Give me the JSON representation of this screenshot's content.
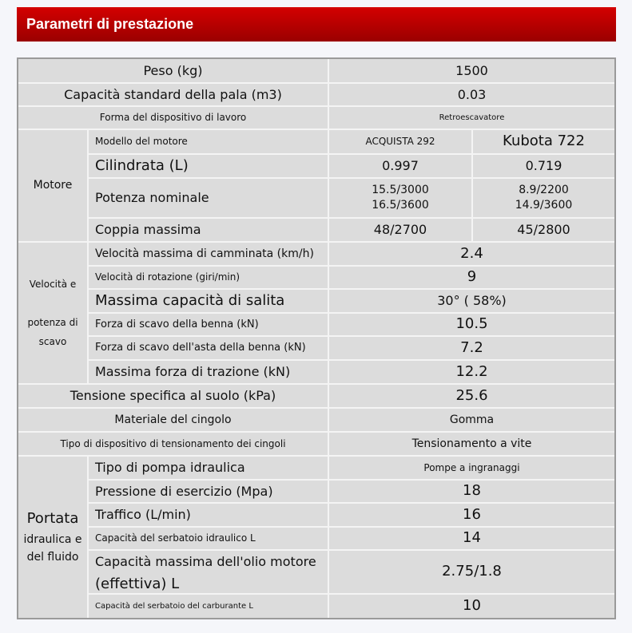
{
  "title": "Parametri di prestazione",
  "rows": {
    "peso": {
      "label": "Peso (kg)",
      "value": "1500"
    },
    "pala": {
      "label": "Capacità standard della pala (m3)",
      "value": "0.03"
    },
    "forma": {
      "label": "Forma del dispositivo di lavoro",
      "value": "Retroescavatore"
    },
    "motore": {
      "group": "Motore",
      "modello": {
        "label": "Modello del motore",
        "v1": "ACQUISTA 292",
        "v2": "Kubota 722"
      },
      "cilindrata": {
        "label": "Cilindrata (L)",
        "v1": "0.997",
        "v2": "0.719"
      },
      "potenza": {
        "label": "Potenza nominale",
        "v1a": "15.5/3000",
        "v1b": "16.5/3600",
        "v2a": "8.9/2200",
        "v2b": "14.9/3600"
      },
      "coppia": {
        "label": "Coppia massima",
        "v1": "48/2700",
        "v2": "45/2800"
      }
    },
    "velocita": {
      "group_a": "Velocità e",
      "group_b": "potenza di",
      "group_c": "scavo",
      "camminata": {
        "label": "Velocità massima di camminata (km/h)",
        "value": "2.4"
      },
      "rotazione": {
        "label": "Velocità di rotazione (giri/min)",
        "value": "9"
      },
      "salita": {
        "label": "Massima capacità di salita",
        "value": "30° ( 58%)"
      },
      "benna": {
        "label": "Forza di scavo della benna (kN)",
        "value": "10.5"
      },
      "asta": {
        "label": "Forza di scavo dell'asta della benna (kN)",
        "value": "7.2"
      },
      "trazione": {
        "label": "Massima forza di trazione (kN)",
        "value": "12.2"
      }
    },
    "tensione": {
      "label": "Tensione specifica al suolo (kPa)",
      "value": "25.6"
    },
    "materiale": {
      "label": "Materiale del cingolo",
      "value": "Gomma"
    },
    "tensionamento": {
      "label": "Tipo di dispositivo di tensionamento dei cingoli",
      "value": "Tensionamento a vite"
    },
    "idraulica": {
      "group_a": "Portata",
      "group_b": "idraulica e",
      "group_c": "del fluido",
      "pompa": {
        "label": "Tipo di pompa idraulica",
        "value": "Pompe a ingranaggi"
      },
      "pressione": {
        "label": "Pressione di esercizio (Mpa)",
        "value": "18"
      },
      "traffico": {
        "label": "Traffico (L/min)",
        "value": "16"
      },
      "serbatoio": {
        "label": "Capacità del serbatoio idraulico L",
        "value": "14"
      },
      "olio": {
        "label_a": "Capacità massima dell'olio motore",
        "label_b": "(effettiva) L",
        "value": "2.75/1.8"
      },
      "carburante": {
        "label": "Capacità del serbatoio del carburante L",
        "value": "10"
      }
    }
  }
}
